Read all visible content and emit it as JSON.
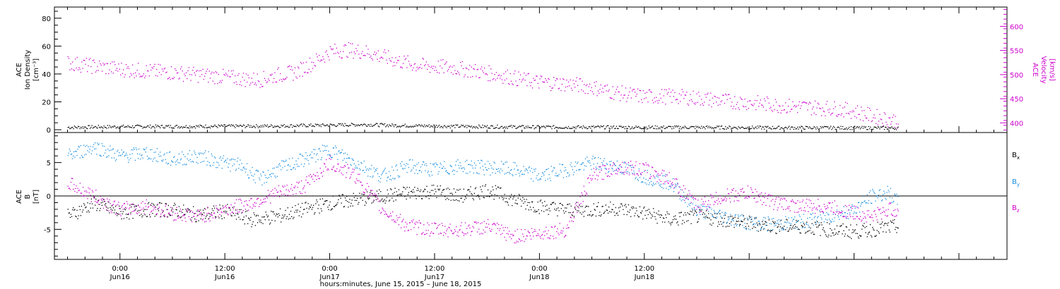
{
  "chart_data": [
    {
      "type": "scatter",
      "panel": "top",
      "ylabel_left": [
        "ACE",
        "Ion Density",
        "[cm⁻³]"
      ],
      "ylabel_right": [
        "ACE",
        "Velocity",
        "[km/s]"
      ],
      "ylim_left": [
        -2,
        88
      ],
      "ylim_right": [
        380,
        640
      ],
      "left_ticks": [
        0,
        20,
        40,
        60,
        80
      ],
      "right_ticks": [
        400,
        450,
        500,
        550,
        600
      ],
      "colors": {
        "density": "#000000",
        "velocity": "#cc00cc"
      },
      "series": [
        {
          "name": "",
          "axis": "left",
          "color": "#000000",
          "points": [
            [
              -6,
              2
            ],
            [
              0,
              2.5
            ],
            [
              6,
              2.6
            ],
            [
              12,
              2.8
            ],
            [
              18,
              3
            ],
            [
              24,
              3.6
            ],
            [
              28,
              4
            ],
            [
              32,
              3.3
            ],
            [
              36,
              3
            ],
            [
              40,
              2.6
            ],
            [
              44,
              2.4
            ],
            [
              48,
              2.2
            ],
            [
              54,
              2.1
            ],
            [
              60,
              2
            ],
            [
              66,
              2
            ],
            [
              72,
              1.8
            ],
            [
              78,
              1.7
            ],
            [
              84,
              1.6
            ],
            [
              89,
              1.5
            ]
          ]
        },
        {
          "name": "",
          "axis": "right",
          "color": "#cc00cc",
          "points": [
            [
              -6,
              525
            ],
            [
              -3,
              518
            ],
            [
              0,
              512
            ],
            [
              3,
              508
            ],
            [
              6,
              505
            ],
            [
              9,
              500
            ],
            [
              12,
              496
            ],
            [
              14,
              492
            ],
            [
              16,
              490
            ],
            [
              18,
              500
            ],
            [
              20,
              505
            ],
            [
              22,
              525
            ],
            [
              24,
              548
            ],
            [
              26,
              552
            ],
            [
              28,
              548
            ],
            [
              30,
              538
            ],
            [
              32,
              528
            ],
            [
              34,
              520
            ],
            [
              36,
              517
            ],
            [
              38,
              515
            ],
            [
              40,
              510
            ],
            [
              42,
              504
            ],
            [
              44,
              498
            ],
            [
              46,
              490
            ],
            [
              48,
              485
            ],
            [
              50,
              483
            ],
            [
              52,
              480
            ],
            [
              54,
              475
            ],
            [
              56,
              466
            ],
            [
              58,
              460
            ],
            [
              60,
              455
            ],
            [
              62,
              456
            ],
            [
              64,
              455
            ],
            [
              66,
              452
            ],
            [
              68,
              448
            ],
            [
              70,
              445
            ],
            [
              72,
              443
            ],
            [
              74,
              440
            ],
            [
              76,
              436
            ],
            [
              78,
              434
            ],
            [
              80,
              432
            ],
            [
              82,
              430
            ],
            [
              84,
              425
            ],
            [
              86,
              415
            ],
            [
              88,
              408
            ],
            [
              89,
              405
            ]
          ]
        }
      ]
    },
    {
      "type": "scatter",
      "panel": "bottom",
      "ylabel_left": [
        "ACE",
        "B",
        "[nT]"
      ],
      "ylim": [
        -9.5,
        9.5
      ],
      "ticks": [
        -5,
        0,
        5
      ],
      "zero_line": true,
      "legend": [
        {
          "base": "B",
          "sub": "x",
          "color": "#000000"
        },
        {
          "base": "B",
          "sub": "y",
          "color": "#1a8fe0"
        },
        {
          "base": "B",
          "sub": "z",
          "color": "#cc00cc"
        }
      ],
      "series": [
        {
          "name": "Bx",
          "color": "#000000",
          "points": [
            [
              -6,
              -3
            ],
            [
              -3,
              -1
            ],
            [
              0,
              -2.5
            ],
            [
              3,
              -2
            ],
            [
              6,
              -2
            ],
            [
              9,
              -2.8
            ],
            [
              12,
              -2.2
            ],
            [
              15,
              -3.5
            ],
            [
              18,
              -3
            ],
            [
              21,
              -2
            ],
            [
              24,
              -1
            ],
            [
              27,
              -0.5
            ],
            [
              30,
              0
            ],
            [
              33,
              0.5
            ],
            [
              36,
              0.8
            ],
            [
              39,
              0
            ],
            [
              42,
              1
            ],
            [
              45,
              -0.5
            ],
            [
              48,
              -1.5
            ],
            [
              51,
              -2
            ],
            [
              54,
              -2
            ],
            [
              57,
              -1.8
            ],
            [
              60,
              -2.5
            ],
            [
              63,
              -3.5
            ],
            [
              66,
              -3
            ],
            [
              69,
              -3.5
            ],
            [
              72,
              -4
            ],
            [
              75,
              -4.5
            ],
            [
              78,
              -4.5
            ],
            [
              81,
              -5
            ],
            [
              84,
              -5.3
            ],
            [
              86,
              -5
            ],
            [
              89,
              -4.5
            ]
          ]
        },
        {
          "name": "By",
          "color": "#1a8fe0",
          "points": [
            [
              -6,
              6
            ],
            [
              -3,
              7.5
            ],
            [
              0,
              6
            ],
            [
              3,
              6.5
            ],
            [
              6,
              5.5
            ],
            [
              9,
              6
            ],
            [
              12,
              5
            ],
            [
              14,
              4.5
            ],
            [
              16,
              2.5
            ],
            [
              18,
              4
            ],
            [
              20,
              5
            ],
            [
              22,
              6
            ],
            [
              24,
              7
            ],
            [
              27,
              5
            ],
            [
              30,
              3
            ],
            [
              33,
              4.5
            ],
            [
              36,
              4
            ],
            [
              39,
              4.5
            ],
            [
              42,
              4.3
            ],
            [
              45,
              4
            ],
            [
              48,
              3
            ],
            [
              51,
              4
            ],
            [
              54,
              5
            ],
            [
              57,
              4.5
            ],
            [
              60,
              3
            ],
            [
              63,
              2
            ],
            [
              66,
              -2
            ],
            [
              69,
              -3
            ],
            [
              72,
              -4
            ],
            [
              75,
              -4.2
            ],
            [
              78,
              -3.8
            ],
            [
              81,
              -3
            ],
            [
              84,
              -2
            ],
            [
              86,
              0
            ],
            [
              88,
              0.5
            ],
            [
              89,
              -1
            ]
          ]
        },
        {
          "name": "Bz",
          "color": "#cc00cc",
          "points": [
            [
              -6,
              2
            ],
            [
              -3,
              0
            ],
            [
              0,
              -2
            ],
            [
              3,
              -1.5
            ],
            [
              6,
              -2.5
            ],
            [
              9,
              -3
            ],
            [
              12,
              -2
            ],
            [
              15,
              -1
            ],
            [
              18,
              0.5
            ],
            [
              21,
              1.5
            ],
            [
              24,
              5
            ],
            [
              27,
              3
            ],
            [
              30,
              -2
            ],
            [
              33,
              -4.5
            ],
            [
              36,
              -5
            ],
            [
              39,
              -5
            ],
            [
              42,
              -4.5
            ],
            [
              45,
              -6
            ],
            [
              48,
              -5.5
            ],
            [
              51,
              -5
            ],
            [
              54,
              3
            ],
            [
              57,
              4.5
            ],
            [
              60,
              4
            ],
            [
              63,
              2.5
            ],
            [
              66,
              -1.5
            ],
            [
              69,
              0
            ],
            [
              72,
              0.5
            ],
            [
              75,
              -1
            ],
            [
              78,
              -1.5
            ],
            [
              81,
              -1.5
            ],
            [
              84,
              -2.5
            ],
            [
              86,
              -3
            ],
            [
              88,
              -2
            ],
            [
              89,
              -2
            ]
          ]
        }
      ]
    }
  ],
  "x_axis": {
    "range": [
      -7.5,
      101.5
    ],
    "label": "hours:minutes, June 15, 2015 – June 18, 2015",
    "major_ticks": [
      {
        "x": 0,
        "time": "0:00",
        "day": "Jun16"
      },
      {
        "x": 12,
        "time": "12:00",
        "day": "Jun16"
      },
      {
        "x": 24,
        "time": "0:00",
        "day": "Jun17"
      },
      {
        "x": 36,
        "time": "12:00",
        "day": "Jun17"
      },
      {
        "x": 48,
        "time": "0:00",
        "day": "Jun18"
      },
      {
        "x": 60,
        "time": "12:00",
        "day": "Jun18"
      }
    ]
  }
}
